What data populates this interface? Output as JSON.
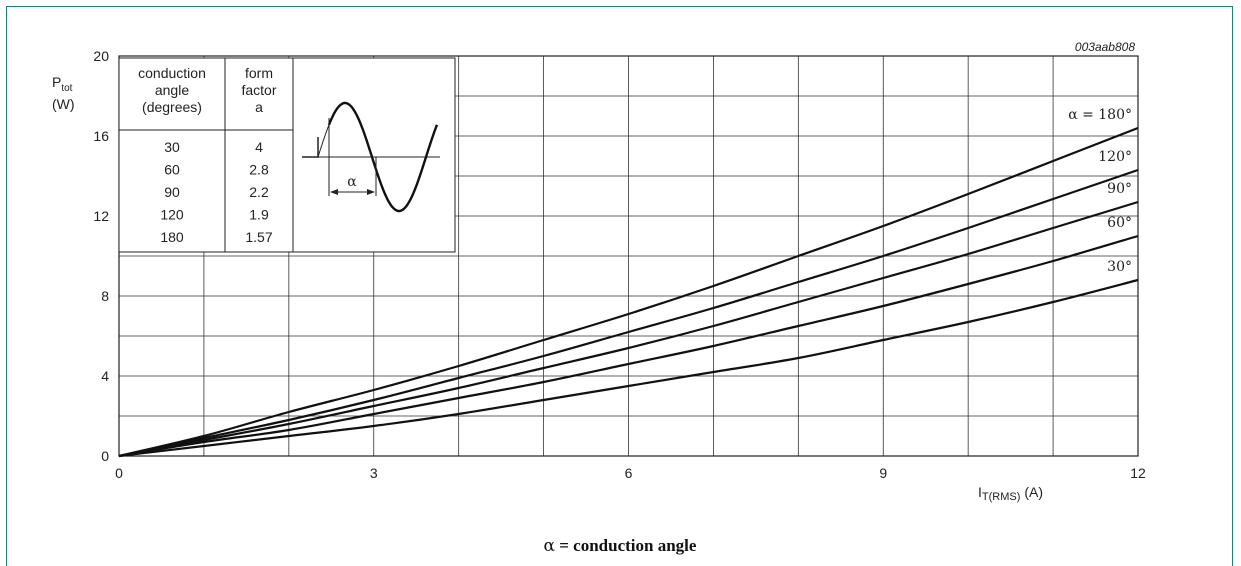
{
  "figure_code": "003aab808",
  "caption": {
    "symbol": "α",
    "text": " = conduction angle"
  },
  "chart_data": {
    "type": "line",
    "title": "",
    "xlabel": "I",
    "xlabel_sub": "T(RMS)",
    "xlabel_unit": "(A)",
    "ylabel": "P",
    "ylabel_sub": "tot",
    "ylabel_unit": "(W)",
    "xlim": [
      0,
      12
    ],
    "ylim": [
      0,
      20
    ],
    "x_ticks": [
      0,
      3,
      6,
      9,
      12
    ],
    "y_ticks": [
      0,
      4,
      8,
      12,
      16,
      20
    ],
    "x_grid_step": 1,
    "y_grid_step": 2,
    "grid": true,
    "series": [
      {
        "name": "α = 180°",
        "x": [
          0,
          1,
          2,
          3,
          4,
          5,
          6,
          7,
          8,
          9,
          10,
          11,
          12
        ],
        "y": [
          0,
          1.0,
          2.2,
          3.3,
          4.5,
          5.8,
          7.1,
          8.5,
          10.0,
          11.5,
          13.1,
          14.75,
          16.4
        ]
      },
      {
        "name": "120°",
        "x": [
          0,
          1,
          2,
          3,
          4,
          5,
          6,
          7,
          8,
          9,
          10,
          11,
          12
        ],
        "y": [
          0,
          0.9,
          1.8,
          2.8,
          3.9,
          5.0,
          6.2,
          7.4,
          8.7,
          10.0,
          11.4,
          12.85,
          14.3
        ]
      },
      {
        "name": "90°",
        "x": [
          0,
          1,
          2,
          3,
          4,
          5,
          6,
          7,
          8,
          9,
          10,
          11,
          12
        ],
        "y": [
          0,
          0.8,
          1.6,
          2.5,
          3.4,
          4.4,
          5.4,
          6.5,
          7.7,
          8.9,
          10.1,
          11.4,
          12.7
        ]
      },
      {
        "name": "60°",
        "x": [
          0,
          1,
          2,
          3,
          4,
          5,
          6,
          7,
          8,
          9,
          10,
          11,
          12
        ],
        "y": [
          0,
          0.7,
          1.3,
          2.1,
          2.9,
          3.7,
          4.6,
          5.5,
          6.5,
          7.5,
          8.6,
          9.75,
          11.0
        ]
      },
      {
        "name": "30°",
        "x": [
          0,
          1,
          2,
          3,
          4,
          5,
          6,
          7,
          8,
          9,
          10,
          11,
          12
        ],
        "y": [
          0,
          0.5,
          1.0,
          1.5,
          2.1,
          2.8,
          3.5,
          4.2,
          4.9,
          5.8,
          6.7,
          7.7,
          8.8
        ]
      }
    ],
    "inset_table": {
      "headers": [
        [
          "conduction",
          "angle",
          "(degrees)"
        ],
        [
          "form",
          "factor",
          "a"
        ]
      ],
      "rows": [
        [
          "30",
          "4"
        ],
        [
          "60",
          "2.8"
        ],
        [
          "90",
          "2.2"
        ],
        [
          "120",
          "1.9"
        ],
        [
          "180",
          "1.57"
        ]
      ],
      "waveform_label": "α"
    }
  }
}
